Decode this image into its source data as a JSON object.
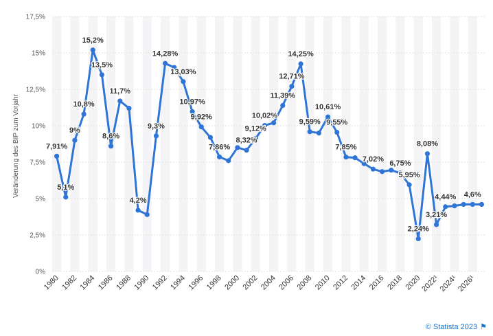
{
  "chart_data": {
    "type": "line",
    "ylabel": "Veränderung des BIP zum Vorjahr",
    "ylim": [
      0,
      17.5
    ],
    "y_ticks": [
      "0%",
      "2,5%",
      "5%",
      "7,5%",
      "10%",
      "12,5%",
      "15%",
      "17,5%"
    ],
    "x_tick_labels": [
      "1980",
      "1982",
      "1984",
      "1986",
      "1988",
      "1990",
      "1992",
      "1994",
      "1996",
      "1998",
      "2000",
      "2002",
      "2004",
      "2006",
      "2008",
      "2010",
      "2012",
      "2014",
      "2016",
      "2018",
      "2020",
      "2022¹",
      "2024¹",
      "2026¹"
    ],
    "grid": true,
    "series_color": "#2e75d6",
    "series": [
      {
        "x": [
          1980,
          1981,
          1982,
          1983,
          1984,
          1985,
          1986,
          1987,
          1988,
          1989,
          1990,
          1991,
          1992,
          1993,
          1994,
          1995,
          1996,
          1997,
          1998,
          1999,
          2000,
          2001,
          2002,
          2003,
          2004,
          2005,
          2006,
          2007,
          2008,
          2009,
          2010,
          2011,
          2012,
          2013,
          2014,
          2015,
          2016,
          2017,
          2018,
          2019,
          2020,
          2021,
          2022,
          2023,
          2024,
          2025,
          2026,
          2027
        ],
        "values": [
          7.91,
          5.1,
          9.0,
          10.8,
          15.2,
          13.5,
          8.6,
          11.7,
          11.2,
          4.2,
          3.9,
          9.3,
          14.28,
          14.0,
          13.03,
          10.97,
          9.92,
          9.2,
          7.86,
          7.6,
          8.5,
          8.32,
          9.12,
          10.02,
          10.2,
          11.39,
          12.71,
          14.25,
          9.59,
          9.5,
          10.61,
          9.55,
          7.85,
          7.8,
          7.4,
          7.02,
          6.85,
          6.95,
          6.75,
          5.95,
          2.24,
          8.08,
          3.21,
          4.44,
          4.5,
          4.6,
          4.6,
          4.6
        ]
      }
    ],
    "data_labels": [
      {
        "x": 1980,
        "text": "7,91%"
      },
      {
        "x": 1981,
        "text": "5,1%"
      },
      {
        "x": 1982,
        "text": "9%"
      },
      {
        "x": 1983,
        "text": "10,8%"
      },
      {
        "x": 1984,
        "text": "15,2%"
      },
      {
        "x": 1985,
        "text": "13,5%"
      },
      {
        "x": 1986,
        "text": "8,6%"
      },
      {
        "x": 1987,
        "text": "11,7%"
      },
      {
        "x": 1989,
        "text": "4,2%"
      },
      {
        "x": 1991,
        "text": "9,3%"
      },
      {
        "x": 1992,
        "text": "14,28%"
      },
      {
        "x": 1994,
        "text": "13,03%"
      },
      {
        "x": 1995,
        "text": "10,97%"
      },
      {
        "x": 1996,
        "text": "9,92%"
      },
      {
        "x": 1998,
        "text": "7,86%"
      },
      {
        "x": 2001,
        "text": "8,32%"
      },
      {
        "x": 2002,
        "text": "9,12%"
      },
      {
        "x": 2003,
        "text": "10,02%"
      },
      {
        "x": 2005,
        "text": "11,39%"
      },
      {
        "x": 2006,
        "text": "12,71%"
      },
      {
        "x": 2007,
        "text": "14,25%"
      },
      {
        "x": 2008,
        "text": "9,59%"
      },
      {
        "x": 2010,
        "text": "10,61%"
      },
      {
        "x": 2011,
        "text": "9,55%"
      },
      {
        "x": 2012,
        "text": "7,85%"
      },
      {
        "x": 2015,
        "text": "7,02%"
      },
      {
        "x": 2018,
        "text": "6,75%"
      },
      {
        "x": 2019,
        "text": "5,95%"
      },
      {
        "x": 2020,
        "text": "2,24%"
      },
      {
        "x": 2021,
        "text": "8,08%"
      },
      {
        "x": 2022,
        "text": "3,21%"
      },
      {
        "x": 2023,
        "text": "4,44%"
      },
      {
        "x": 2026,
        "text": "4,6%"
      }
    ]
  },
  "credit": {
    "text": "© Statista 2023",
    "icon": "flag-icon"
  }
}
